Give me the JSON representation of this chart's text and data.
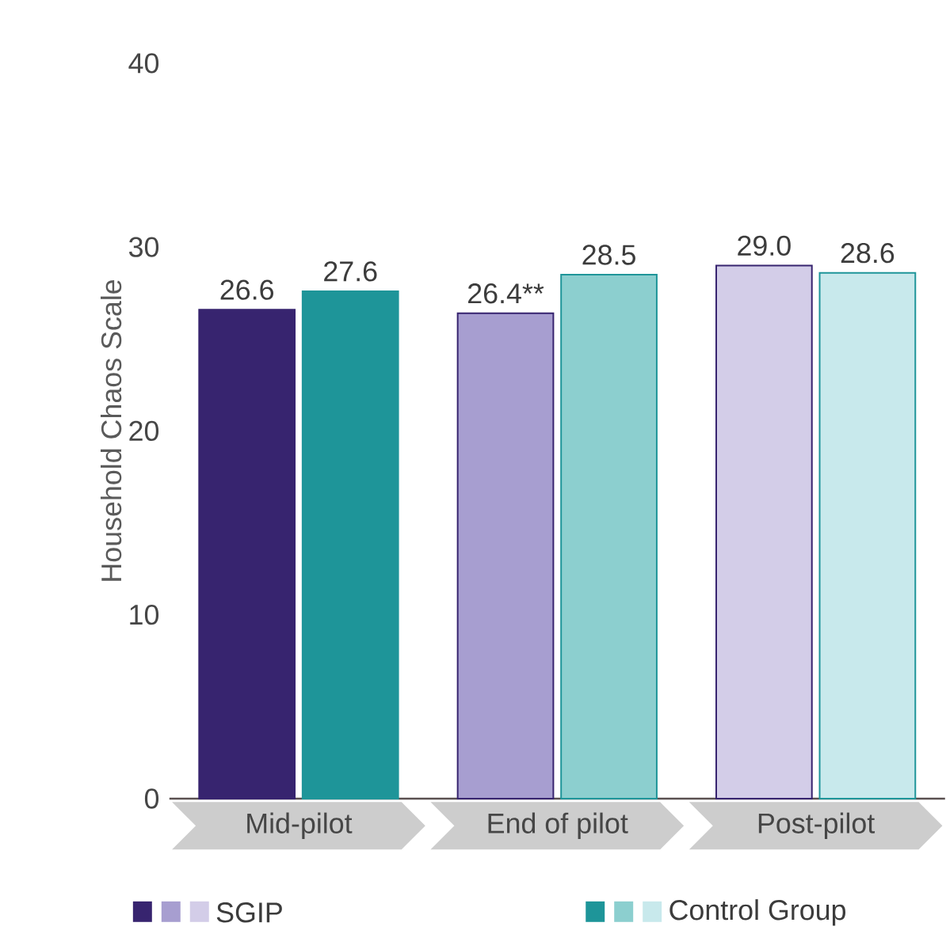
{
  "chart_data": {
    "type": "bar",
    "ylabel": "Household Chaos Scale",
    "categories": [
      "Mid-pilot",
      "End of pilot",
      "Post-pilot"
    ],
    "series": [
      {
        "name": "SGIP",
        "colors": [
          "#37246f",
          "#a79ed0",
          "#d3cde8"
        ],
        "values": [
          26.6,
          26.4,
          29.0
        ],
        "value_labels": [
          "26.6",
          "26.4**",
          "29.0"
        ]
      },
      {
        "name": "Control Group",
        "colors": [
          "#1e9599",
          "#8ccfcf",
          "#c8e9ec"
        ],
        "values": [
          27.6,
          28.5,
          28.6
        ],
        "value_labels": [
          "27.6",
          "28.5",
          "28.6"
        ]
      }
    ],
    "ylim": [
      0,
      40
    ],
    "yticks": [
      0,
      10,
      20,
      30,
      40
    ],
    "grid": false,
    "legend": "bottom"
  }
}
